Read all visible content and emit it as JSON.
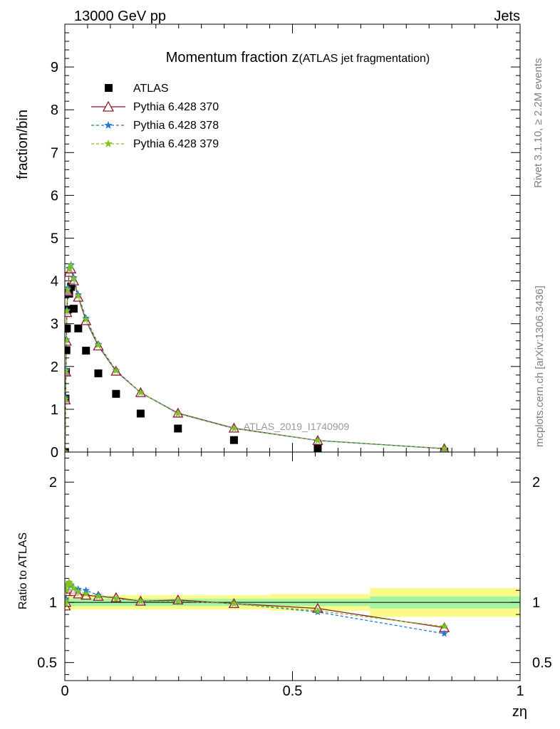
{
  "header": {
    "energy_label": "13000 GeV pp",
    "category_label": "Jets"
  },
  "side_labels": {
    "rivet": "Rivet 3.1.10, ≥ 2.2M events",
    "mcplots": "mcplots.cern.ch [arXiv:1306.3436]"
  },
  "chart_data": [
    {
      "type": "scatter",
      "title_main": "Momentum fraction z",
      "title_sub": "(ATLAS jet fragmentation)",
      "ylabel": "fraction/bin",
      "watermark": "ATLAS_2019_I1740909",
      "xlim": [
        0,
        1
      ],
      "ylim": [
        0,
        10
      ],
      "y_ticks": [
        0,
        1,
        2,
        3,
        4,
        5,
        6,
        7,
        8,
        9
      ],
      "legend_position": "top-left",
      "series": [
        {
          "name": "ATLAS",
          "color": "#000000",
          "marker": "square",
          "x": [
            0.0005,
            0.0015,
            0.0025,
            0.0035,
            0.0045,
            0.0065,
            0.0095,
            0.0135,
            0.0195,
            0.0295,
            0.0465,
            0.0735,
            0.1125,
            0.1665,
            0.2485,
            0.3715,
            0.5555,
            0.8335
          ],
          "y": [
            0.0,
            1.25,
            1.87,
            2.38,
            2.89,
            3.33,
            3.7,
            3.86,
            3.35,
            2.89,
            2.37,
            1.84,
            1.36,
            0.9,
            0.55,
            0.28,
            0.1,
            0.01
          ]
        },
        {
          "name": "Pythia 6.428 370",
          "color": "#8b1a2b",
          "marker": "triangle-open",
          "line": "solid",
          "x": [
            0.0005,
            0.0015,
            0.0025,
            0.0035,
            0.0045,
            0.0065,
            0.0095,
            0.0135,
            0.0195,
            0.0295,
            0.0465,
            0.0735,
            0.1125,
            0.1665,
            0.2485,
            0.3715,
            0.5555,
            0.8335
          ],
          "y": [
            0.0,
            1.22,
            1.87,
            2.59,
            3.26,
            3.75,
            4.2,
            4.28,
            4.0,
            3.62,
            3.07,
            2.48,
            1.89,
            1.39,
            0.91,
            0.56,
            0.27,
            0.08
          ]
        },
        {
          "name": "Pythia 6.428 378",
          "color": "#1f77d4",
          "marker": "star",
          "line": "dashed",
          "x": [
            0.0005,
            0.0015,
            0.0025,
            0.0035,
            0.0045,
            0.0065,
            0.0095,
            0.0135,
            0.0195,
            0.0295,
            0.0465,
            0.0735,
            0.1125,
            0.1665,
            0.2485,
            0.3715,
            0.5555,
            0.8335
          ],
          "y": [
            0.0,
            1.28,
            1.93,
            2.63,
            3.32,
            3.84,
            4.3,
            4.38,
            4.08,
            3.68,
            3.13,
            2.52,
            1.91,
            1.39,
            0.9,
            0.55,
            0.27,
            0.08
          ]
        },
        {
          "name": "Pythia 6.428 379",
          "color": "#7fc41c",
          "marker": "star",
          "line": "dashed",
          "x": [
            0.0005,
            0.0015,
            0.0025,
            0.0035,
            0.0045,
            0.0065,
            0.0095,
            0.0135,
            0.0195,
            0.0295,
            0.0465,
            0.0735,
            0.1125,
            0.1665,
            0.2485,
            0.3715,
            0.5555,
            0.8335
          ],
          "y": [
            0.0,
            1.24,
            1.9,
            2.61,
            3.3,
            3.8,
            4.27,
            4.36,
            4.05,
            3.65,
            3.1,
            2.5,
            1.9,
            1.39,
            0.9,
            0.55,
            0.27,
            0.08
          ]
        }
      ]
    },
    {
      "type": "line",
      "ylabel": "Ratio to ATLAS",
      "xlabel": "zη",
      "xlim": [
        0,
        1
      ],
      "ylim": [
        0.35,
        2.25
      ],
      "y_ticks": [
        0.5,
        1,
        2
      ],
      "y_tick_labels": [
        "0.5",
        "1",
        "2"
      ],
      "x_ticks": [
        0,
        0.5,
        1
      ],
      "x_tick_labels": [
        "0",
        "0.5",
        "1"
      ],
      "bands": {
        "edges": [
          0,
          0.45,
          0.67,
          1.0
        ],
        "inner_halfwidth": [
          0.03,
          0.03,
          0.05
        ],
        "outer_halfwidth": [
          0.06,
          0.07,
          0.12
        ],
        "inner_color": "#a5f5a5",
        "outer_color": "#fbfb8c"
      },
      "series": [
        {
          "name": "Pythia 6.428 370",
          "x": [
            0.0015,
            0.0025,
            0.0035,
            0.0045,
            0.0065,
            0.0095,
            0.0135,
            0.0195,
            0.0295,
            0.0465,
            0.0735,
            0.1125,
            0.1665,
            0.2485,
            0.3715,
            0.5555,
            0.8335
          ],
          "y": [
            0.97,
            1.0,
            1.09,
            1.13,
            1.13,
            1.14,
            1.11,
            1.09,
            1.07,
            1.06,
            1.05,
            1.04,
            1.01,
            1.02,
            0.99,
            0.95,
            0.79
          ]
        },
        {
          "name": "Pythia 6.428 378",
          "x": [
            0.0015,
            0.0025,
            0.0035,
            0.0045,
            0.0065,
            0.0095,
            0.0135,
            0.0195,
            0.0295,
            0.0465,
            0.0735,
            0.1125,
            0.1665,
            0.2485,
            0.3715,
            0.5555,
            0.8335
          ],
          "y": [
            1.02,
            1.03,
            1.1,
            1.15,
            1.15,
            1.16,
            1.14,
            1.12,
            1.11,
            1.1,
            1.06,
            1.03,
            1.01,
            1.01,
            0.99,
            0.92,
            0.74
          ]
        },
        {
          "name": "Pythia 6.428 379",
          "x": [
            0.0015,
            0.0025,
            0.0035,
            0.0045,
            0.0065,
            0.0095,
            0.0135,
            0.0195,
            0.0295,
            0.0465,
            0.0735,
            0.1125,
            0.1665,
            0.2485,
            0.3715,
            0.5555,
            0.8335
          ],
          "y": [
            0.99,
            1.01,
            1.1,
            1.14,
            1.15,
            1.17,
            1.15,
            1.12,
            1.09,
            1.07,
            1.05,
            1.03,
            1.01,
            1.01,
            0.99,
            0.93,
            0.8
          ]
        }
      ]
    }
  ]
}
